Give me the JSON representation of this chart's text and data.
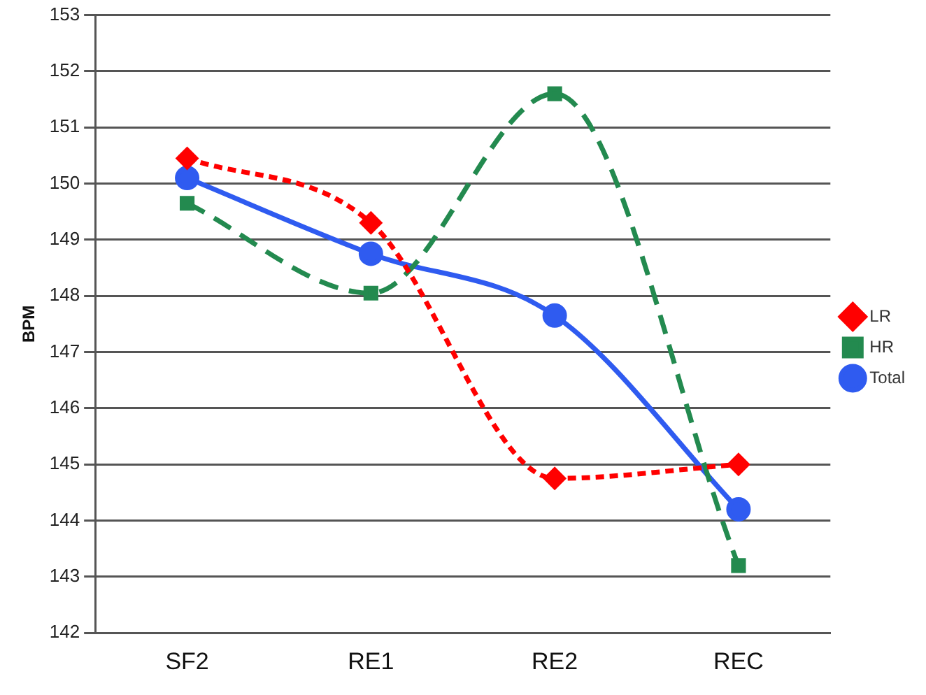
{
  "chart_data": {
    "type": "line",
    "ylabel": "BPM",
    "categories": [
      "SF2",
      "RE1",
      "RE2",
      "REC"
    ],
    "series": [
      {
        "name": "LR",
        "color": "#ff0000",
        "marker": "diamond",
        "line_style": "dotted",
        "values": [
          150.45,
          149.3,
          144.75,
          145.0
        ]
      },
      {
        "name": "HR",
        "color": "#238a4f",
        "marker": "square",
        "line_style": "dashed",
        "values": [
          149.65,
          148.05,
          151.6,
          143.2
        ]
      },
      {
        "name": "Total",
        "color": "#2f5bf0",
        "marker": "circle",
        "line_style": "solid",
        "values": [
          150.1,
          148.75,
          147.65,
          144.2
        ]
      }
    ],
    "ylim": [
      142,
      153
    ],
    "yticks": [
      142,
      143,
      144,
      145,
      146,
      147,
      148,
      149,
      150,
      151,
      152,
      153
    ],
    "grid": "y",
    "legend": "right"
  }
}
